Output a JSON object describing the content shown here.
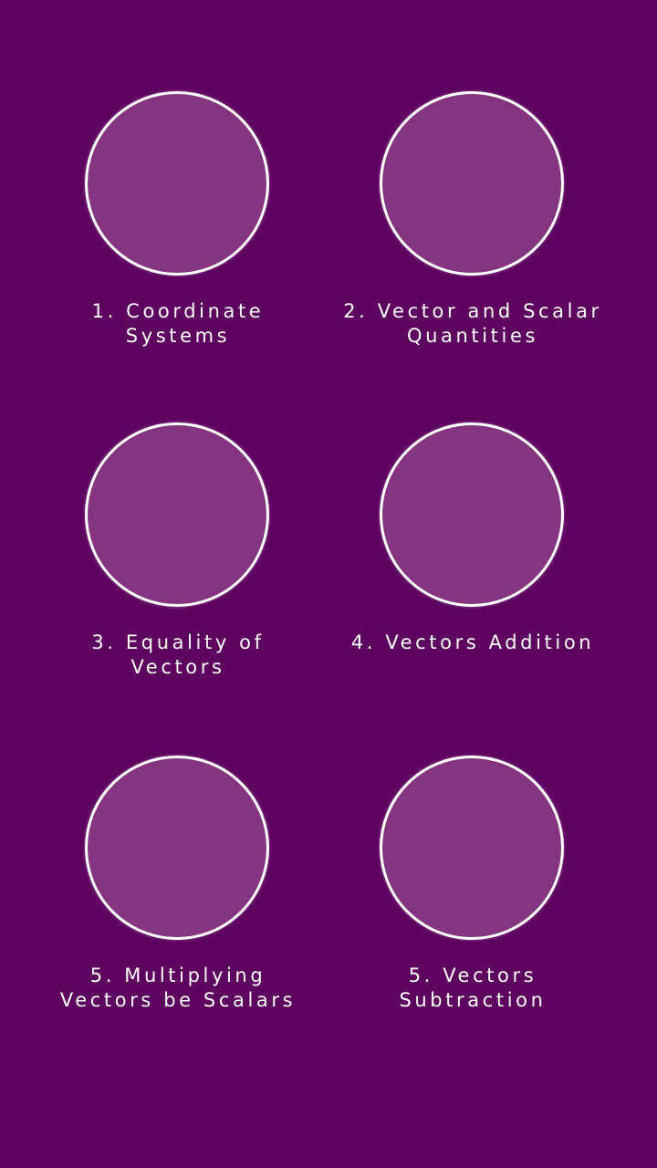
{
  "colors": {
    "background": "#5e0260",
    "circle_fill": "#85357f",
    "circle_border": "#ffffff",
    "text": "#ffffff"
  },
  "topics": [
    {
      "lines": [
        "1. Coordinate",
        "Systems"
      ]
    },
    {
      "lines": [
        "2. Vector and Scalar",
        "Quantities"
      ]
    },
    {
      "lines": [
        "3. Equality of",
        "Vectors"
      ]
    },
    {
      "lines": [
        "4. Vectors Addition"
      ]
    },
    {
      "lines": [
        "5. Multiplying",
        "Vectors be Scalars"
      ]
    },
    {
      "lines": [
        "5. Vectors",
        "Subtraction"
      ]
    }
  ]
}
